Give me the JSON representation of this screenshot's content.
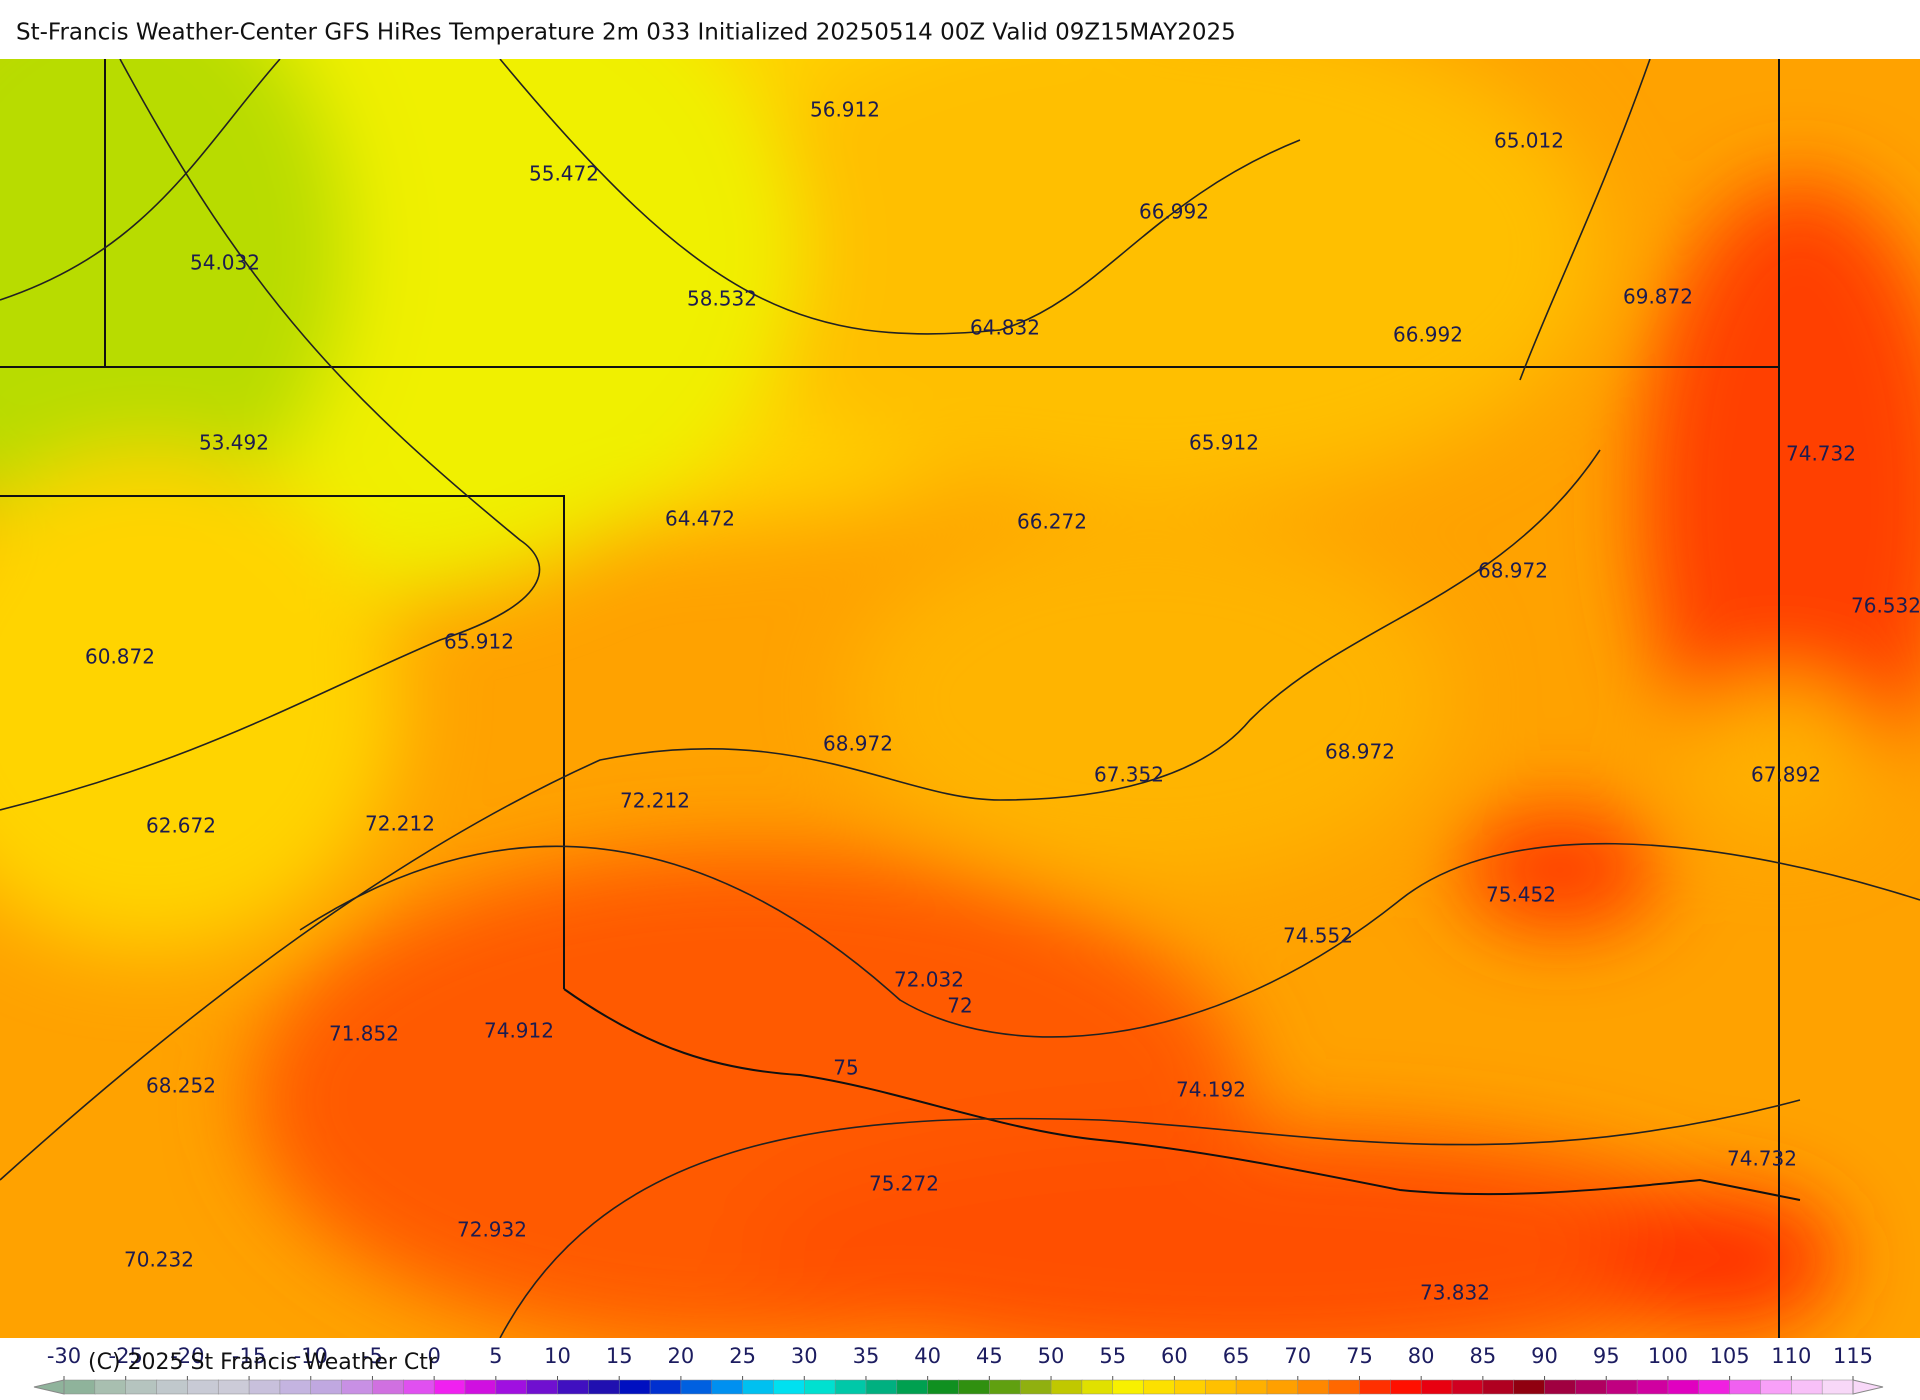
{
  "header": {
    "title": "St-Francis Weather-Center GFS HiRes Temperature 2m  033 Initialized 20250514 00Z Valid 09Z15MAY2025"
  },
  "map": {
    "labels": [
      "56.912",
      "55.472",
      "54.032",
      "58.532",
      "66.992",
      "65.012",
      "64.832",
      "66.992",
      "69.872",
      "53.492",
      "65.912",
      "74.732",
      "64.472",
      "66.272",
      "68.972",
      "76.532",
      "60.872",
      "65.912",
      "68.972",
      "67.352",
      "68.972",
      "67.892",
      "72.212",
      "62.672",
      "72.212",
      "75.452",
      "74.552",
      "72.032",
      "72",
      "71.852",
      "74.912",
      "75",
      "74.192",
      "68.252",
      "74.732",
      "75.272",
      "72.932",
      "70.232",
      "73.832"
    ]
  },
  "colorbar": {
    "ticks": [
      -30,
      -25,
      -20,
      -15,
      -10,
      -5,
      0,
      5,
      10,
      15,
      20,
      25,
      30,
      35,
      40,
      45,
      50,
      55,
      60,
      65,
      70,
      75,
      80,
      85,
      90,
      95,
      100,
      105,
      110,
      115
    ],
    "colors": [
      "#8fb39b",
      "#a8bfb0",
      "#b5c4bf",
      "#c0c8cc",
      "#c8cad5",
      "#cccbd8",
      "#c8c0dc",
      "#c4b4e0",
      "#c0a8e0",
      "#c890e4",
      "#d070e0",
      "#e050f0",
      "#f020f0",
      "#d010e0",
      "#a010e0",
      "#7010d0",
      "#4010c0",
      "#2010b0",
      "#0010c0",
      "#0030d0",
      "#0060e0",
      "#0090f0",
      "#00c0f0",
      "#00e0f0",
      "#00e0d0",
      "#00c8a8",
      "#00b080",
      "#00a050",
      "#109020",
      "#309010",
      "#60a010",
      "#90b010",
      "#c0c800",
      "#e0e000",
      "#f8f000",
      "#fce000",
      "#ffd000",
      "#ffc000",
      "#ffb000",
      "#ffa000",
      "#ff8800",
      "#ff6800",
      "#ff3000",
      "#ff1000",
      "#e80010",
      "#d00020",
      "#b00020",
      "#900010",
      "#a00040",
      "#b00060",
      "#c00080",
      "#d000a0",
      "#e000c0",
      "#f020e0",
      "#f060f0",
      "#f8a0f8",
      "#f8c0f8",
      "#f8d8f8"
    ]
  },
  "footer": {
    "copyright": "(C) 2025 St Francis Weather Ctr"
  }
}
